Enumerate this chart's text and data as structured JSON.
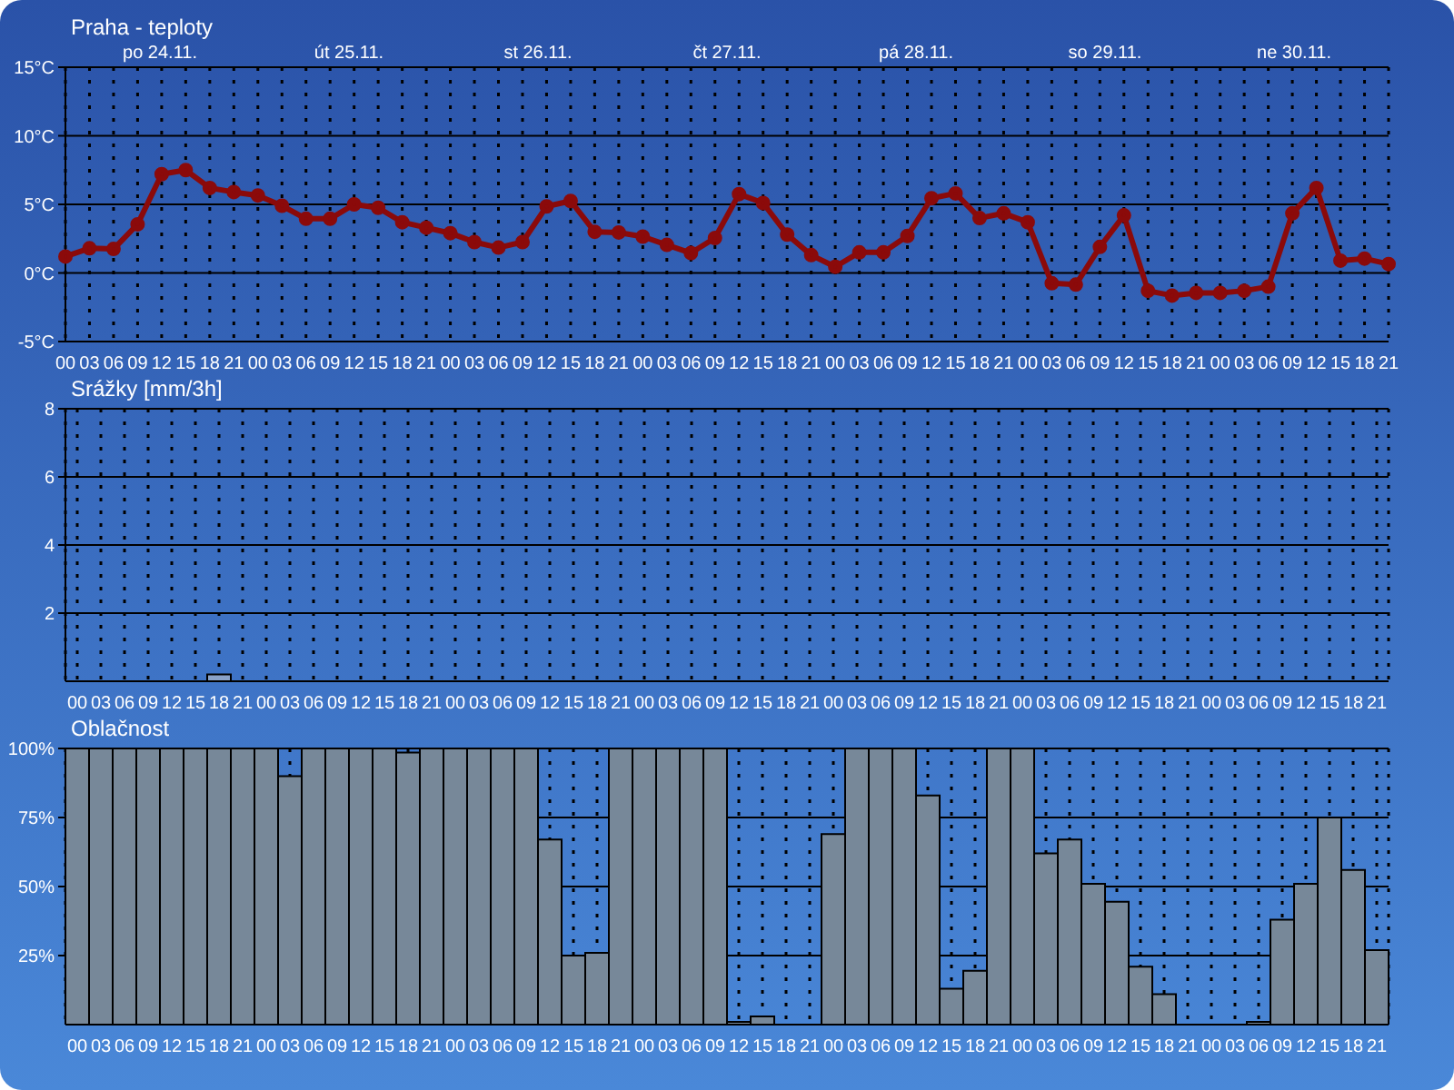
{
  "chart_data": [
    {
      "type": "line",
      "title": "Praha - teploty",
      "categories": [
        "00",
        "03",
        "06",
        "09",
        "12",
        "15",
        "18",
        "21",
        "00",
        "03",
        "06",
        "09",
        "12",
        "15",
        "18",
        "21",
        "00",
        "03",
        "06",
        "09",
        "12",
        "15",
        "18",
        "21",
        "00",
        "03",
        "06",
        "09",
        "12",
        "15",
        "18",
        "21",
        "00",
        "03",
        "06",
        "09",
        "12",
        "15",
        "18",
        "21",
        "00",
        "03",
        "06",
        "09",
        "12",
        "15",
        "18",
        "21",
        "00",
        "03",
        "06",
        "09",
        "12",
        "15",
        "18",
        "21"
      ],
      "series": [
        {
          "color": "#8b0a0a",
          "values": [
            1.2,
            1.8,
            1.75,
            3.55,
            7.2,
            7.5,
            6.2,
            5.9,
            5.65,
            4.9,
            3.95,
            3.95,
            5.0,
            4.75,
            3.7,
            3.3,
            2.9,
            2.25,
            1.85,
            2.25,
            4.85,
            5.25,
            3.0,
            2.95,
            2.65,
            2.05,
            1.45,
            2.55,
            5.75,
            5.1,
            2.8,
            1.3,
            0.45,
            1.5,
            1.5,
            2.7,
            5.45,
            5.8,
            4.0,
            4.35,
            3.7,
            -0.75,
            -0.85,
            1.9,
            4.2,
            -1.3,
            -1.65,
            -1.45,
            -1.45,
            -1.3,
            -1.0,
            4.35,
            6.2,
            0.9,
            1.05,
            0.65
          ]
        }
      ],
      "ylim": [
        -5,
        15
      ],
      "yticks": [
        {
          "value": -5,
          "label": "-5°C"
        },
        {
          "value": 0,
          "label": "0°C"
        },
        {
          "value": 5,
          "label": "5°C"
        },
        {
          "value": 10,
          "label": "10°C"
        },
        {
          "value": 15,
          "label": "15°C"
        }
      ],
      "grid": true,
      "marker": "circle",
      "line_style": "solid",
      "legend": false,
      "annotations": [
        "po 24.11.",
        "út 25.11.",
        "st 26.11.",
        "čt 27.11.",
        "pá 28.11.",
        "so 29.11.",
        "ne 30.11."
      ]
    },
    {
      "type": "bar",
      "title": "Srážky [mm/3h]",
      "categories": [
        "00",
        "03",
        "06",
        "09",
        "12",
        "15",
        "18",
        "21",
        "00",
        "03",
        "06",
        "09",
        "12",
        "15",
        "18",
        "21",
        "00",
        "03",
        "06",
        "09",
        "12",
        "15",
        "18",
        "21",
        "00",
        "03",
        "06",
        "09",
        "12",
        "15",
        "18",
        "21",
        "00",
        "03",
        "06",
        "09",
        "12",
        "15",
        "18",
        "21",
        "00",
        "03",
        "06",
        "09",
        "12",
        "15",
        "18",
        "21",
        "00",
        "03",
        "06",
        "09",
        "12",
        "15",
        "18",
        "21"
      ],
      "series": [
        {
          "color": "#8aa2c8",
          "values": [
            0,
            0,
            0,
            0,
            0,
            0,
            0.2,
            0,
            0,
            0,
            0,
            0,
            0,
            0,
            0,
            0,
            0,
            0,
            0,
            0,
            0,
            0,
            0,
            0,
            0,
            0,
            0,
            0,
            0,
            0,
            0,
            0,
            0,
            0,
            0,
            0,
            0,
            0,
            0,
            0,
            0,
            0,
            0,
            0,
            0,
            0,
            0,
            0,
            0,
            0,
            0,
            0,
            0,
            0,
            0,
            0
          ]
        }
      ],
      "ylim": [
        0,
        8
      ],
      "yticks": [
        2,
        4,
        6,
        8
      ],
      "grid": true,
      "legend": false
    },
    {
      "type": "bar",
      "title": "Oblačnost",
      "categories": [
        "00",
        "03",
        "06",
        "09",
        "12",
        "15",
        "18",
        "21",
        "00",
        "03",
        "06",
        "09",
        "12",
        "15",
        "18",
        "21",
        "00",
        "03",
        "06",
        "09",
        "12",
        "15",
        "18",
        "21",
        "00",
        "03",
        "06",
        "09",
        "12",
        "15",
        "18",
        "21",
        "00",
        "03",
        "06",
        "09",
        "12",
        "15",
        "18",
        "21",
        "00",
        "03",
        "06",
        "09",
        "12",
        "15",
        "18",
        "21",
        "00",
        "03",
        "06",
        "09",
        "12",
        "15",
        "18",
        "21"
      ],
      "series": [
        {
          "color": "#778899",
          "values": [
            100,
            100,
            100,
            100,
            100,
            100,
            100,
            100,
            100,
            90,
            100,
            100,
            100,
            100,
            98.5,
            100,
            100,
            100,
            100,
            100,
            67,
            25,
            26,
            100,
            100,
            100,
            100,
            100,
            1,
            3,
            0,
            0,
            69,
            100,
            100,
            100,
            83,
            13,
            19.5,
            100,
            100,
            62,
            67,
            51,
            44.5,
            21,
            11,
            0,
            0,
            0,
            1,
            38,
            51,
            75,
            56,
            27
          ]
        }
      ],
      "ylim": [
        0,
        100
      ],
      "yticks": [
        {
          "value": 25,
          "label": "25%"
        },
        {
          "value": 50,
          "label": "50%"
        },
        {
          "value": 75,
          "label": "75%"
        },
        {
          "value": 100,
          "label": "100%"
        }
      ],
      "grid": true,
      "legend": false
    }
  ]
}
